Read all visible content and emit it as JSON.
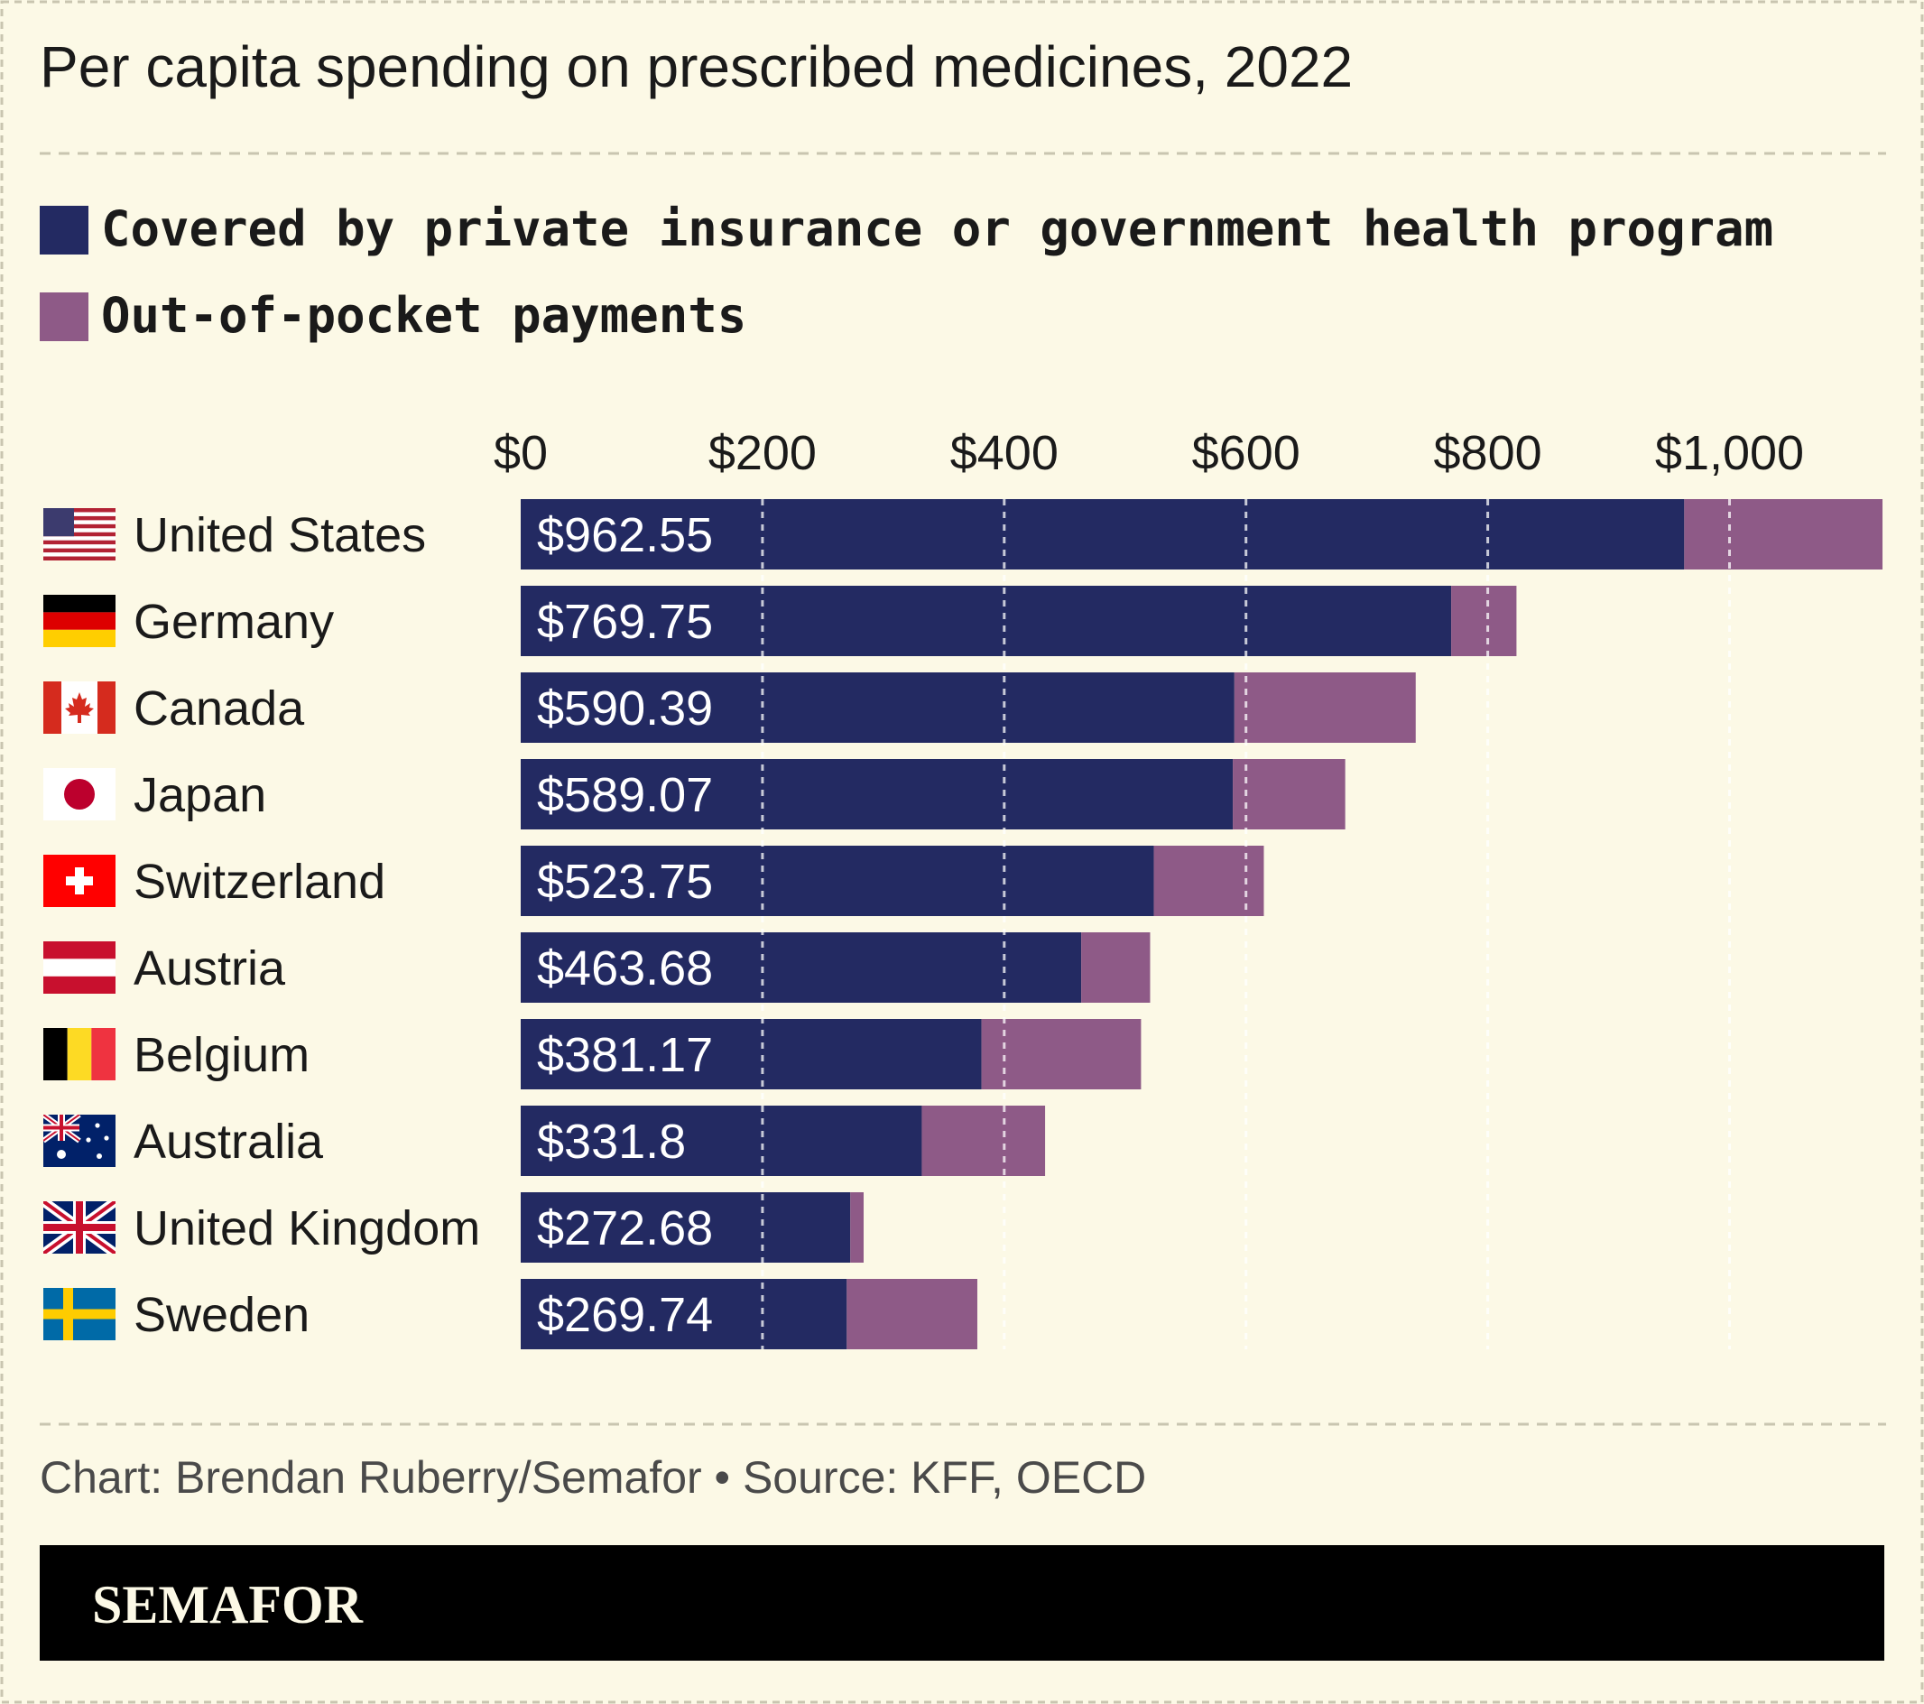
{
  "header": {
    "title": "Per capita spending on prescribed medicines, 2022"
  },
  "footer": {
    "source": "Chart: Brendan Ruberry/Semafor • Source: KFF, OECD",
    "brand": "SEMAFOR"
  },
  "colors": {
    "background": "#fcf9e6",
    "covered": "#232a62",
    "out_of_pocket": "#8e5a87",
    "text": "#1a1a1a",
    "muted": "#4a4a4a",
    "divider": "#c9c5b0",
    "brand_bar": "#000000",
    "brand_text": "#fcf9e6"
  },
  "chart_data": {
    "type": "bar",
    "orientation": "horizontal",
    "stacked": true,
    "title": "Per capita spending on prescribed medicines, 2022",
    "xlabel": "",
    "ylabel": "",
    "xlim": [
      0,
      1130
    ],
    "xticks": [
      0,
      200,
      400,
      600,
      800,
      1000
    ],
    "xtick_labels": [
      "$0",
      "$200",
      "$400",
      "$600",
      "$800",
      "$1,000"
    ],
    "grid": true,
    "legend": "top-left",
    "categories": [
      "United States",
      "Germany",
      "Canada",
      "Japan",
      "Switzerland",
      "Austria",
      "Belgium",
      "Australia",
      "United Kingdom",
      "Sweden"
    ],
    "flags": [
      "us-flag-icon",
      "germany-flag-icon",
      "canada-flag-icon",
      "japan-flag-icon",
      "switzerland-flag-icon",
      "austria-flag-icon",
      "belgium-flag-icon",
      "australia-flag-icon",
      "uk-flag-icon",
      "sweden-flag-icon"
    ],
    "series": [
      {
        "name": "Covered by private insurance or government health program",
        "values": [
          962.55,
          769.75,
          590.39,
          589.07,
          523.75,
          463.68,
          381.17,
          331.8,
          272.68,
          269.74
        ],
        "labels": [
          "$962.55",
          "$769.75",
          "$590.39",
          "$589.07",
          "$523.75",
          "$463.68",
          "$381.17",
          "$331.8",
          "$272.68",
          "$269.74"
        ]
      },
      {
        "name": "Out-of-pocket payments",
        "values": [
          164,
          54,
          150,
          93,
          91,
          57,
          132,
          102,
          11,
          108
        ]
      }
    ]
  }
}
